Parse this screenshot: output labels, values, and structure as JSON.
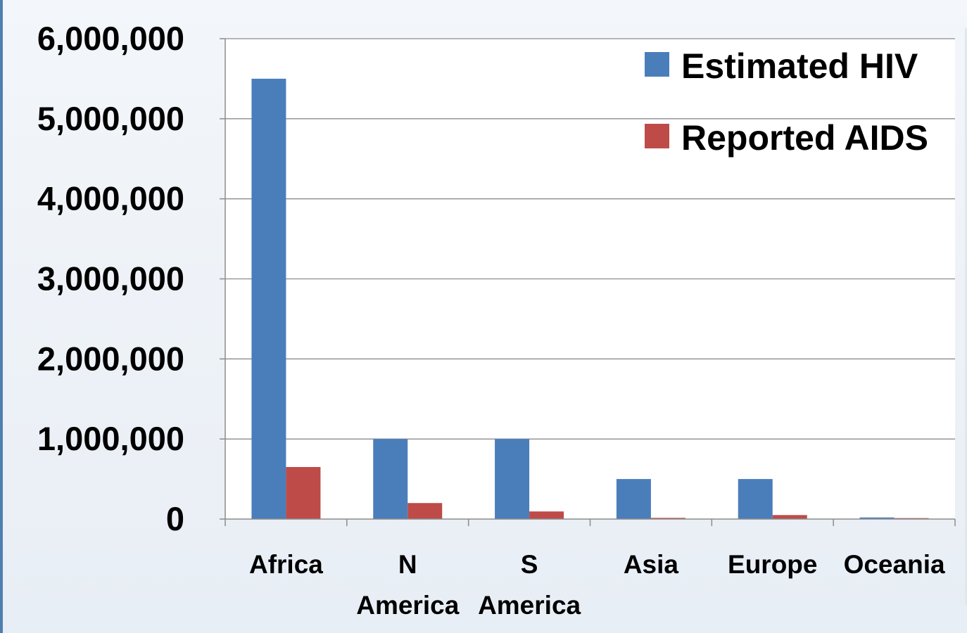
{
  "page": {
    "title_fragment": "",
    "background": "#e8eef5"
  },
  "chart_data": {
    "type": "bar",
    "title": "",
    "xlabel": "",
    "ylabel": "",
    "ylim": [
      0,
      6000000
    ],
    "y_ticks": [
      0,
      1000000,
      2000000,
      3000000,
      4000000,
      5000000,
      6000000
    ],
    "y_tick_labels": [
      "0",
      "1,000,000",
      "2,000,000",
      "3,000,000",
      "4,000,000",
      "5,000,000",
      "6,000,000"
    ],
    "categories": [
      {
        "label": "Africa",
        "lines": [
          "Africa"
        ]
      },
      {
        "label": "N America",
        "lines": [
          "N",
          "America"
        ]
      },
      {
        "label": "S America",
        "lines": [
          "S",
          "America"
        ]
      },
      {
        "label": "Asia",
        "lines": [
          "Asia"
        ]
      },
      {
        "label": "Europe",
        "lines": [
          "Europe"
        ]
      },
      {
        "label": "Oceania",
        "lines": [
          "Oceania"
        ]
      }
    ],
    "series": [
      {
        "name": "Estimated HIV",
        "color": "#4a7ebb",
        "values": [
          5500000,
          1000000,
          1000000,
          500000,
          500000,
          20000
        ]
      },
      {
        "name": "Reported AIDS",
        "color": "#be4b48",
        "values": [
          650000,
          200000,
          95000,
          15000,
          50000,
          12000
        ]
      }
    ],
    "grid": true,
    "legend_position": "top-right",
    "gridline_color": "#8c8c8c"
  }
}
